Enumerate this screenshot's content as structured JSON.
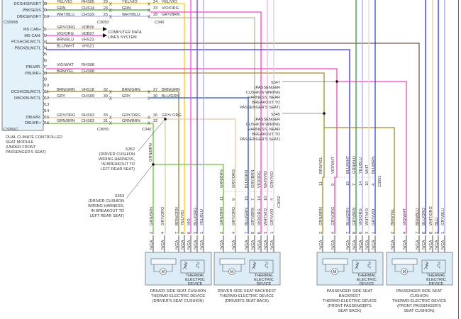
{
  "module": {
    "name_lines": [
      "DUAL CLIMATE CONTROLLED",
      "SEAT MODULE",
      "(UNDER FRONT",
      "PASSENGER'S SEAT)"
    ],
    "connector_top": "C3265B",
    "connector_bottom": "C3265C"
  },
  "connectors": {
    "c3050": "C3050",
    "c340": "C340",
    "c3051": "C3051",
    "c3052": "C3052"
  },
  "computer_data_lines": [
    "COMPUTER DATA",
    "LINES SYSTEM"
  ],
  "module_pins": [
    {
      "pin": "8",
      "signal": "DCSHSENSRT",
      "color": "YEL/VIO",
      "circuit": "RHS05",
      "c3050_pin": "29",
      "color2": "YEL/VIO",
      "c340_pin": "24",
      "color3": "YEL/VIO"
    },
    {
      "pin": "9",
      "signal": "PBKSENS",
      "color": "GRN",
      "circuit": "CHS14",
      "c3050_pin": "24",
      "color2": "GRN",
      "c340_pin": "33",
      "color3": "VIO/ORG"
    },
    {
      "pin": "10",
      "signal": "DBKSENSRT",
      "color": "WHT/BLU",
      "circuit": "CHS29",
      "c3050_pin": "25",
      "color2": "WHT/BLU",
      "c340_pin": "28",
      "color3": "GRY/BRN"
    },
    {
      "pin": "1",
      "signal": "MS CAN+",
      "color": "GRY/ORG",
      "circuit": "VDB06"
    },
    {
      "pin": "2",
      "signal": "MS CAN-",
      "color": "VIO/ORG",
      "circuit": "VDB07"
    },
    {
      "pin": "3",
      "signal": "PCSHCBLWCTL",
      "color": "BRN/BLU",
      "circuit": "VHS23"
    },
    {
      "pin": "4",
      "signal": "PBCKBLWCTL",
      "color": "BLU/WHT",
      "circuit": "VHS21"
    },
    {
      "pin": "5"
    },
    {
      "pin": "6"
    },
    {
      "pin": "7",
      "signal": "PBLWR-",
      "color": "VIO/WHT",
      "circuit": "RHS08"
    },
    {
      "pin": "8",
      "signal": "PBLWR+",
      "color": "BRN/YEL",
      "circuit": "CHS08"
    },
    {
      "pin": "9"
    },
    {
      "pin": "10"
    },
    {
      "pin": "11",
      "signal": "DCSHCBLWCTL",
      "color": "BRN/GRN",
      "circuit": "VHS18",
      "c3050_pin": "32",
      "color2": "BRN/GRN",
      "c340_pin": "27",
      "color3": "BRN/GRN"
    },
    {
      "pin": "12",
      "signal": "DBCKBLWCTL",
      "color": "GRY",
      "circuit": "CHS09",
      "c3050_pin": "30",
      "color2": "GRY",
      "c340_pin": "30",
      "color3": "BLU/GRN"
    },
    {
      "pin": "13"
    },
    {
      "pin": "14"
    },
    {
      "pin": "15",
      "signal": "DBLWR-",
      "color": "GRY/ORG",
      "circuit": "RHS03",
      "c3050_pin": "33",
      "color2": "GRY/ORG",
      "c340_pin": "26",
      "color3": "GRY/ ORG"
    },
    {
      "pin": "16",
      "signal": "DBLWR+",
      "color": "GRN/BRN",
      "circuit": "CHS03",
      "c3050_pin": "31",
      "color2": "GRN/BRN",
      "c340_pin": "32"
    }
  ],
  "splices": [
    {
      "id": "S352",
      "lines": [
        "S352",
        "(DRIVER CUSHION",
        "WIRING HARNESS,",
        "IN BREAKOUT TO",
        "LEFT REAR SEAT)"
      ]
    },
    {
      "id": "S353",
      "lines": [
        "S353",
        "(DRIVER CUSHION",
        "WIRING HARNESS,",
        "IN BREAKOUT TO",
        "LEFT REAR SEAT)"
      ]
    },
    {
      "id": "S347",
      "lines": [
        "S347",
        "(PASSENGER",
        "CUSHION WIRING",
        "HARNESS, NEAR",
        "BREAKOUT TO",
        "PASSENGER'S SEAT)"
      ]
    },
    {
      "id": "S345",
      "lines": [
        "S345",
        "(PASSENGER",
        "CUSHION WIRING",
        "HARNESS, NEAR",
        "BREAKOUT TO",
        "PASSENGER'S SEAT)"
      ]
    }
  ],
  "splice_wire_labels": [
    "GRN/BRN",
    "GRY/ORG"
  ],
  "inline_c3052": [
    {
      "pin": "11",
      "color": "GRN/BRN"
    },
    {
      "pin": "9",
      "color": "GRY/ORG"
    },
    {
      "pin": "15",
      "color": "BLU/GRN"
    },
    {
      "pin": "7",
      "color": "GRY/BRN"
    },
    {
      "pin": "14",
      "color": "VIO/ORG"
    },
    {
      "pin": "10",
      "color": "WHT/VIO"
    },
    {
      "pin": "4",
      "color": "GRY/VIO"
    }
  ],
  "inline_c3051": [
    {
      "pin": "11",
      "color": "BRN/YEL"
    },
    {
      "pin": "9",
      "color": "VIO/WHT"
    },
    {
      "pin": "15",
      "color": "BLU/WHT"
    },
    {
      "pin": "7",
      "color": "GRN/BLU"
    },
    {
      "pin": "14",
      "color": "YEL/BLU"
    },
    {
      "pin": "10",
      "color": "WHT"
    },
    {
      "pin": "4",
      "color": "BLU/BRN"
    }
  ],
  "device_common": {
    "pin_state": "N/CA",
    "motor_label": "M",
    "thermal_lines": [
      "THERMAL",
      "ELECTRIC",
      "DEVICE"
    ]
  },
  "devices": [
    {
      "caption": [
        "DRIVER SIDE SEAT CUSHION",
        "THERMO-ELECTRIC DEVICE",
        "(DRIVER'S SEAT CUSHION)"
      ],
      "pins": [
        {
          "pin": "2",
          "color": "GRN/BRN"
        },
        {
          "pin": "4",
          "color": "GRY/ORG"
        },
        {
          "pin": "7",
          "color": "BRN/GRN"
        },
        {
          "pin": "8",
          "color": "YEL/VIO"
        },
        {
          "pin": "6",
          "color": "VIO"
        },
        {
          "pin": "3",
          "color": "BLU/ORG"
        },
        {
          "pin": "1",
          "color": "YEL/BLU"
        }
      ]
    },
    {
      "caption": [
        "DRIVER SIDE SEAT BACKREST",
        "THERMO-ELECTRIC DEVICE",
        "(DRIVER'S SEAT BACK)"
      ],
      "pins": [
        {
          "pin": "2",
          "color": "GRN/BRN"
        },
        {
          "pin": "4",
          "color": "GRY/ORG"
        },
        {
          "pin": "7",
          "color": "BLU/GRN"
        },
        {
          "pin": "8",
          "color": "GRY/BRN"
        },
        {
          "pin": "6",
          "color": "VIO/ORG"
        },
        {
          "pin": "3",
          "color": "WHT/VIO"
        },
        {
          "pin": "1",
          "color": "GRY/VIO"
        }
      ]
    },
    {
      "caption": [
        "PASSENGER SIDE SEAT",
        "BACKREST",
        "THERMO-ELECTRIC DEVICE",
        "(FRONT PASSENGER'S",
        "SEAT BACK)"
      ],
      "pins": [
        {
          "pin": "2",
          "color": "GRN/BRN"
        },
        {
          "pin": "4",
          "color": "GRY/ORG"
        },
        {
          "pin": "7",
          "color": "BLU/GRN"
        },
        {
          "pin": "8",
          "color": "GRY/BRN"
        },
        {
          "pin": "6",
          "color": "VIO/ORG"
        },
        {
          "pin": "3",
          "color": "WHT/VIO"
        },
        {
          "pin": "1",
          "color": "GRY/VIO"
        }
      ]
    },
    {
      "caption": [
        "PASSENGER SIDE SEAT",
        "CUSHION",
        "THERMO-ELECTRIC DEVICE",
        "(FRONT PASSENGER'S",
        "SEAT CUSHION)"
      ],
      "pins": [
        {
          "pin": "2",
          "color": "BRN/YEL"
        },
        {
          "pin": "4",
          "color": "VIO/WHT"
        },
        {
          "pin": "7",
          "color": "BRN/BLU"
        },
        {
          "pin": "8",
          "color": "BLU/ORG"
        },
        {
          "pin": "6",
          "color": "WHT/ORG"
        },
        {
          "pin": "3",
          "color": "BLU"
        },
        {
          "pin": "1",
          "color": "GRY/BLU"
        }
      ]
    }
  ],
  "wire_colors": {
    "YEL/VIO": "#f2d000",
    "GRN": "#3aa83a",
    "WHT/BLU": "#aab0ff",
    "VIO/ORG": "#ff3fcf",
    "GRY/BRN": "#b9b39a",
    "GRY/ORG": "#e6c6a2",
    "BRN/BLU": "#7a5a44",
    "BLU/WHT": "#3030ff",
    "VIO/WHT": "#ff3fcf",
    "BRN/YEL": "#a58c1e",
    "BRN/GRN": "#8b8b2e",
    "GRY": "#c8c8c8",
    "BLU/GRN": "#2050ee",
    "GRN/BRN": "#6cbf3a",
    "VIO": "#ff44dd",
    "BLU/ORG": "#7040dd",
    "YEL/BLU": "#a4a4ff",
    "WHT/VIO": "#ffa8ee",
    "GRY/VIO": "#d8d0e0",
    "GRN/BLU": "#2e9a4a",
    "WHT": "#dddddd",
    "BLU/BRN": "#3344dd",
    "BLU": "#2a2aff",
    "WHT/ORG": "#efc59a",
    "GRY/BLU": "#9aa6ff",
    "module_fill": "#e3f1fa",
    "device_fill": "#dcedf7"
  }
}
